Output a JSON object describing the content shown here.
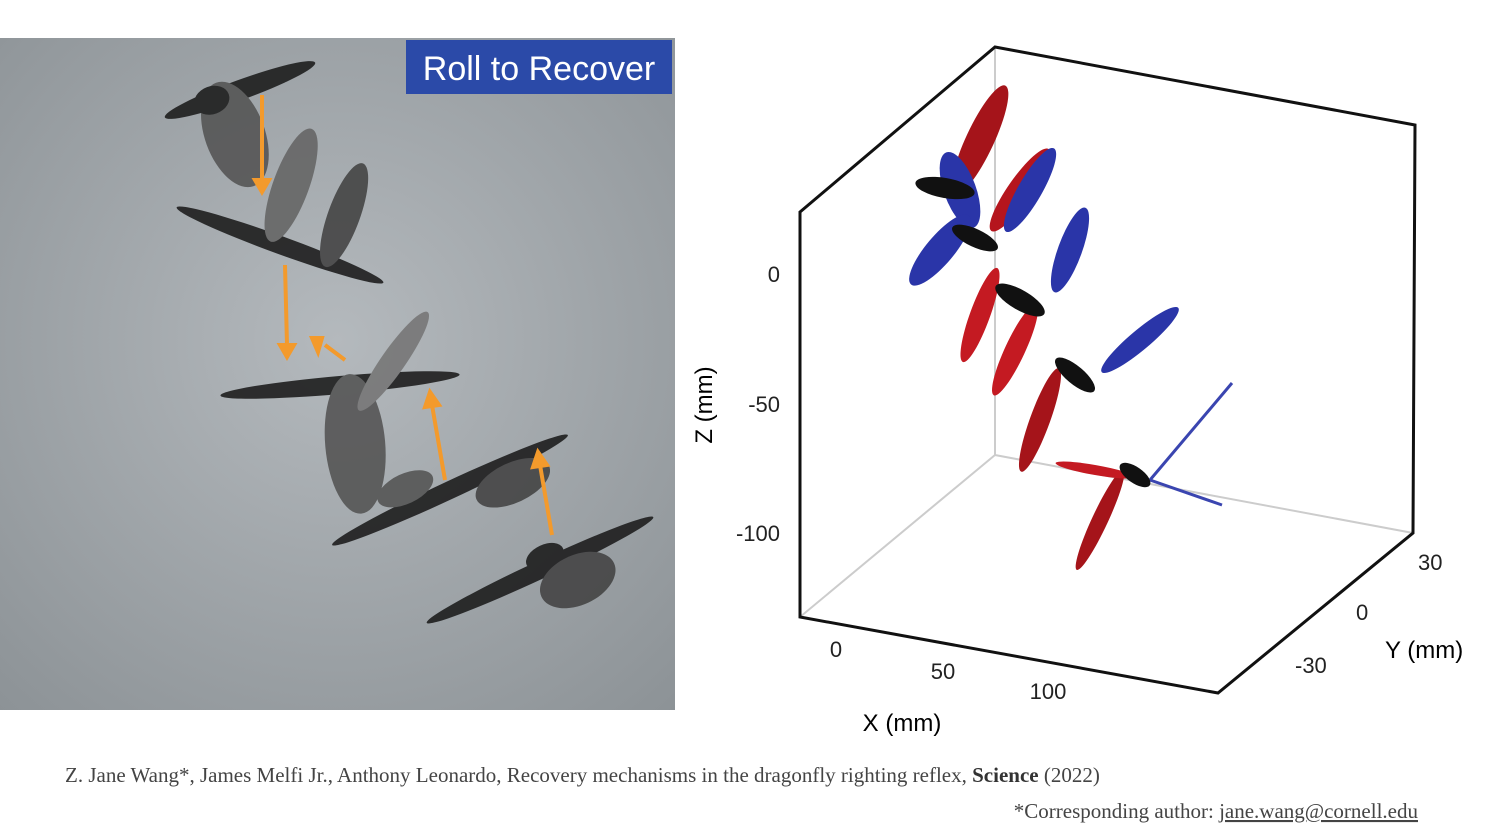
{
  "photo": {
    "label": "Roll to Recover"
  },
  "plot": {
    "z_label": "Z (mm)",
    "z_ticks": [
      0,
      -50,
      -100
    ],
    "x_label": "X (mm)",
    "x_ticks": [
      0,
      50,
      100
    ],
    "y_label": "Y (mm)",
    "y_ticks": [
      30,
      0,
      -30
    ]
  },
  "citation": {
    "authors_title": "Z. Jane Wang*, James Melfi Jr., Anthony Leonardo,  Recovery mechanisms in the dragonfly righting reflex,",
    "journal": "Science",
    "year": "(2022)",
    "corresponding": "*Corresponding author:",
    "email": "jane.wang@cornell.edu"
  }
}
